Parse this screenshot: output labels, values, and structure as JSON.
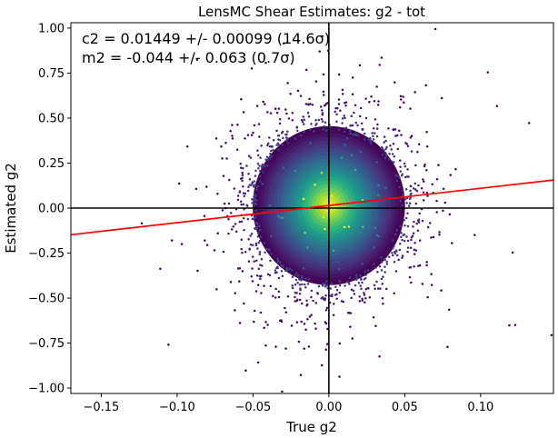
{
  "chart_data": {
    "type": "scatter",
    "title": "LensMC Shear Estimates: g2  - tot",
    "xlabel": "True g2",
    "ylabel": "Estimated g2",
    "xlim": [
      -0.17,
      0.148
    ],
    "ylim": [
      -1.03,
      1.03
    ],
    "xticks": [
      -0.15,
      -0.1,
      -0.05,
      0.0,
      0.05,
      0.1
    ],
    "xtick_labels": [
      "−0.15",
      "−0.10",
      "−0.05",
      "0.00",
      "0.05",
      "0.10"
    ],
    "yticks": [
      -1.0,
      -0.75,
      -0.5,
      -0.25,
      0.0,
      0.25,
      0.5,
      0.75,
      1.0
    ],
    "ytick_labels": [
      "−1.00",
      "−0.75",
      "−0.50",
      "−0.25",
      "0.00",
      "0.25",
      "0.50",
      "0.75",
      "1.00"
    ],
    "grid": false,
    "colormap": "viridis (point density)",
    "annotations": [
      {
        "text": "c2 = 0.01449 +/- 0.00099 (14.6σ)"
      },
      {
        "text": "m2 = -0.044 +/- 0.063 (0.7σ)"
      }
    ],
    "reference_lines": [
      {
        "orientation": "horizontal",
        "y": 0.0,
        "color": "#000000"
      },
      {
        "orientation": "vertical",
        "x": 0.0,
        "color": "#000000"
      }
    ],
    "fit_line": {
      "slope": 0.956,
      "intercept": 0.01449,
      "color": "#ff0000"
    },
    "scatter_distribution": {
      "x_std": 0.025,
      "y_std": 0.22,
      "y_center": 0.014
    }
  }
}
